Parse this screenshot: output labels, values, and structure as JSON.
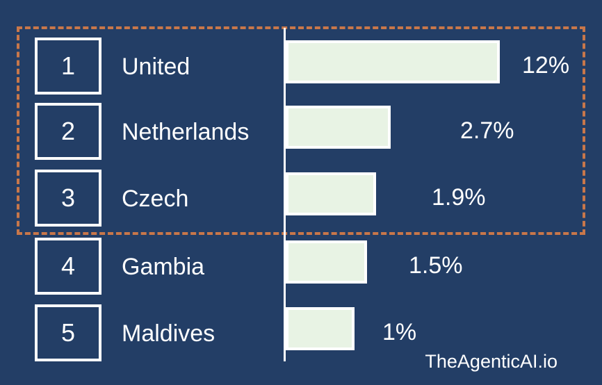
{
  "chart_data": {
    "type": "bar",
    "orientation": "horizontal",
    "ranks": [
      "1",
      "2",
      "3",
      "4",
      "5"
    ],
    "categories": [
      "United",
      "Netherlands",
      "Czech",
      "Gambia",
      "Maldives"
    ],
    "values": [
      12,
      2.7,
      1.9,
      1.5,
      1
    ],
    "value_labels": [
      "12%",
      "2.7%",
      "1.9%",
      "1.5%",
      "1%"
    ],
    "highlighted_count": 3,
    "colors": {
      "background": "#233e66",
      "bar_fill": "#e8f3e4",
      "bar_border": "#ffffff",
      "highlight_border": "#c8774a"
    }
  },
  "watermark": "TheAgenticAI.io"
}
